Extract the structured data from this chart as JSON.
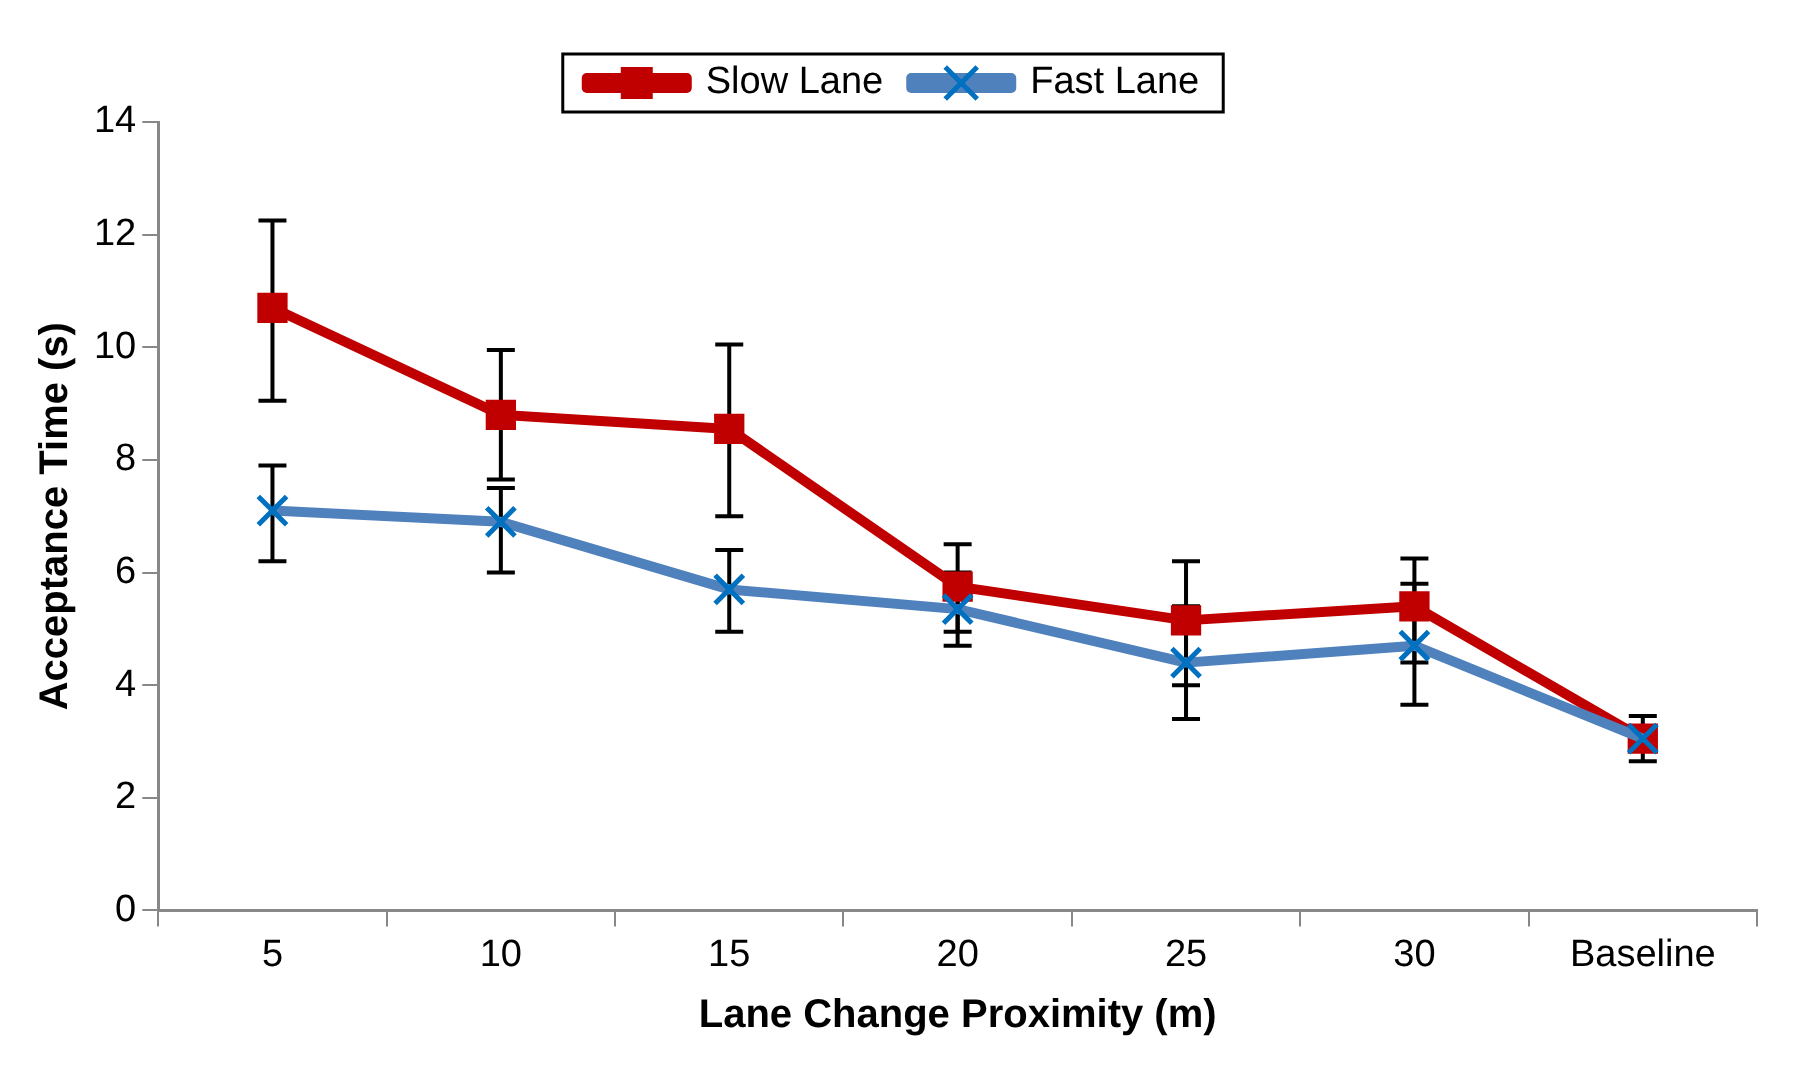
{
  "chart_data": {
    "type": "line",
    "xlabel": "Lane Change Proximity (m)",
    "ylabel": "Acceptance Time (s)",
    "categories": [
      "5",
      "10",
      "15",
      "20",
      "25",
      "30",
      "Baseline"
    ],
    "series": [
      {
        "name": "Slow Lane",
        "color": "#c00000",
        "marker": "square",
        "values": [
          10.7,
          8.8,
          8.55,
          5.75,
          5.15,
          5.4,
          3.05
        ],
        "errors": [
          [
            9.05,
            12.25
          ],
          [
            7.65,
            9.95
          ],
          [
            7.0,
            10.05
          ],
          [
            4.95,
            6.5
          ],
          [
            4.0,
            6.2
          ],
          [
            4.4,
            6.25
          ],
          [
            2.65,
            3.45
          ]
        ]
      },
      {
        "name": "Fast Lane",
        "color": "#4f81bd",
        "marker": "cross",
        "values": [
          7.1,
          6.9,
          5.7,
          5.35,
          4.4,
          4.7,
          3.05
        ],
        "errors": [
          [
            6.2,
            7.9
          ],
          [
            6.0,
            7.5
          ],
          [
            4.95,
            6.4
          ],
          [
            4.7,
            6.0
          ],
          [
            3.4,
            5.4
          ],
          [
            3.65,
            5.8
          ],
          [
            2.65,
            3.45
          ]
        ]
      }
    ],
    "ylim": [
      0,
      14
    ],
    "yticks": [
      0,
      2,
      4,
      6,
      8,
      10,
      12,
      14
    ],
    "grid": false,
    "legend": "top"
  }
}
